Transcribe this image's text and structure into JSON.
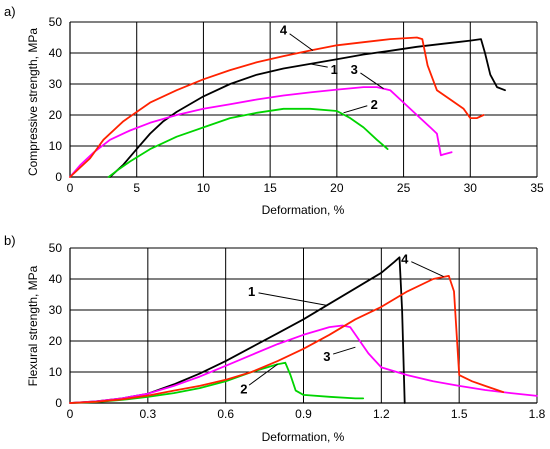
{
  "chart_data": [
    {
      "panel_label": "a)",
      "type": "line",
      "xlabel": "Deformation, %",
      "ylabel": "Compressive strength, MPa",
      "xlim": [
        0,
        35
      ],
      "ylim": [
        0,
        50
      ],
      "xticks": [
        0,
        5,
        10,
        15,
        20,
        25,
        30,
        35
      ],
      "yticks": [
        0,
        10,
        20,
        30,
        40,
        50
      ],
      "x_tick_labels": [
        "0",
        "5",
        "10",
        "15",
        "20",
        "25",
        "30",
        "35"
      ],
      "y_tick_labels": [
        "0",
        "10",
        "20",
        "30",
        "40",
        "50"
      ],
      "grid": true,
      "series": [
        {
          "name": "1",
          "color": "#000000",
          "x": [
            3.0,
            4,
            5,
            6,
            7,
            8,
            10,
            12,
            14,
            16,
            18,
            20,
            22,
            24,
            26,
            28,
            29,
            30,
            30.8,
            31.1,
            31.5,
            32,
            32.6
          ],
          "y": [
            0,
            4,
            9,
            14,
            18,
            21,
            26,
            30,
            33,
            35,
            36.5,
            38,
            39.5,
            40.7,
            42,
            43,
            43.5,
            44,
            44.5,
            40,
            33,
            29,
            28
          ]
        },
        {
          "name": "2",
          "color": "#00d400",
          "x": [
            2.9,
            3.5,
            4.5,
            6,
            8,
            10,
            12,
            14,
            16,
            18,
            20,
            21,
            22,
            23,
            23.8
          ],
          "y": [
            0,
            2,
            5,
            9,
            13,
            16,
            19,
            20.7,
            22,
            22,
            21.3,
            19,
            16,
            12,
            9
          ]
        },
        {
          "name": "3",
          "color": "#ff00ff",
          "x": [
            0,
            0.8,
            1.8,
            3,
            4.5,
            6,
            8,
            10,
            12,
            14,
            16,
            18,
            20,
            22,
            23,
            24,
            25,
            26,
            27,
            27.5,
            27.8,
            28,
            28.6
          ],
          "y": [
            0,
            4,
            8,
            12,
            15,
            17.5,
            20,
            22,
            23.5,
            25,
            26.3,
            27.3,
            28.2,
            29,
            29,
            28,
            24,
            20,
            16,
            14,
            7,
            7.3,
            8
          ]
        },
        {
          "name": "4",
          "color": "#ff2200",
          "x": [
            0,
            1.5,
            2.5,
            4,
            6,
            8,
            10,
            12,
            14,
            16,
            18,
            20,
            22,
            24,
            26,
            26.4,
            26.8,
            27.5,
            28.5,
            29.5,
            30,
            30.5,
            31
          ],
          "y": [
            0,
            6,
            12,
            18,
            24,
            28,
            31.5,
            34.5,
            37,
            39,
            40.8,
            42.5,
            43.5,
            44.5,
            45,
            44.5,
            36,
            28,
            25,
            22,
            19,
            19,
            20
          ]
        }
      ],
      "annotations": [
        {
          "text": "4",
          "series": "4",
          "label_at": [
            16.0,
            46.0
          ],
          "arrow_to": [
            18.2,
            40.8
          ]
        },
        {
          "text": "1",
          "series": "1",
          "label_at": [
            19.8,
            33.3
          ],
          "arrow_to": [
            18.0,
            36.5
          ]
        },
        {
          "text": "3",
          "series": "3",
          "label_at": [
            21.3,
            33.3
          ],
          "arrow_to": [
            23.5,
            28.5
          ]
        },
        {
          "text": "2",
          "series": "2",
          "label_at": [
            22.8,
            22.0
          ],
          "arrow_to": [
            20.5,
            20.7
          ]
        }
      ]
    },
    {
      "panel_label": "b)",
      "type": "line",
      "xlabel": "Deformation, %",
      "ylabel": "Flexural strength, MPa",
      "xlim": [
        0,
        1.8
      ],
      "ylim": [
        0,
        50
      ],
      "xticks": [
        0,
        0.3,
        0.6,
        0.9,
        1.2,
        1.5,
        1.8
      ],
      "yticks": [
        0,
        10,
        20,
        30,
        40,
        50
      ],
      "x_tick_labels": [
        "0",
        "0.3",
        "0.6",
        "0.9",
        "1.2",
        "1.5",
        "1.8"
      ],
      "y_tick_labels": [
        "0",
        "10",
        "20",
        "30",
        "40",
        "50"
      ],
      "grid": true,
      "series": [
        {
          "name": "1",
          "color": "#000000",
          "x": [
            0,
            0.1,
            0.2,
            0.3,
            0.4,
            0.5,
            0.6,
            0.7,
            0.8,
            0.9,
            1.0,
            1.1,
            1.2,
            1.25,
            1.27,
            1.28,
            1.29
          ],
          "y": [
            0,
            0.5,
            1.5,
            3,
            6,
            9.5,
            13.5,
            18,
            22.5,
            27,
            32,
            37,
            42,
            45.5,
            47,
            30,
            0
          ]
        },
        {
          "name": "2",
          "color": "#00d400",
          "x": [
            0,
            0.1,
            0.2,
            0.3,
            0.4,
            0.5,
            0.6,
            0.7,
            0.8,
            0.83,
            0.85,
            0.87,
            0.9,
            1.0,
            1.1,
            1.13
          ],
          "y": [
            0,
            0.3,
            1,
            2,
            3.2,
            4.8,
            7,
            10,
            12.5,
            13,
            9,
            4,
            2.6,
            2,
            1.5,
            1.5
          ]
        },
        {
          "name": "3",
          "color": "#ff00ff",
          "x": [
            0,
            0.1,
            0.2,
            0.3,
            0.4,
            0.5,
            0.6,
            0.7,
            0.8,
            0.9,
            1.0,
            1.05,
            1.08,
            1.15,
            1.2,
            1.3,
            1.4,
            1.5,
            1.6,
            1.7,
            1.8
          ],
          "y": [
            0,
            0.5,
            1.5,
            3,
            5.5,
            8.5,
            12,
            15.5,
            19,
            22,
            24.5,
            25,
            24.5,
            16,
            11.5,
            9,
            7,
            5.5,
            4.2,
            3.2,
            2.3
          ]
        },
        {
          "name": "4",
          "color": "#ff2200",
          "x": [
            0,
            0.1,
            0.2,
            0.3,
            0.4,
            0.5,
            0.6,
            0.7,
            0.8,
            0.9,
            1.0,
            1.1,
            1.2,
            1.3,
            1.4,
            1.46,
            1.48,
            1.5,
            1.55,
            1.6,
            1.67
          ],
          "y": [
            0,
            0.4,
            1.2,
            2.4,
            4,
            5.5,
            7.5,
            10,
            13.5,
            17.5,
            22,
            27,
            31,
            36,
            40,
            41,
            36,
            9,
            7,
            5.5,
            3.5
          ]
        }
      ],
      "annotations": [
        {
          "text": "1",
          "series": "1",
          "label_at": [
            0.7,
            34.5
          ],
          "arrow_to": [
            0.99,
            31.5
          ]
        },
        {
          "text": "4",
          "series": "4",
          "label_at": [
            1.29,
            45.0
          ],
          "arrow_to": [
            1.44,
            40.8
          ]
        },
        {
          "text": "3",
          "series": "3",
          "label_at": [
            0.99,
            13.5
          ],
          "arrow_to": [
            1.1,
            18.0
          ]
        },
        {
          "text": "2",
          "series": "2",
          "label_at": [
            0.67,
            3.0
          ],
          "arrow_to": [
            0.8,
            12.5
          ]
        }
      ]
    }
  ]
}
